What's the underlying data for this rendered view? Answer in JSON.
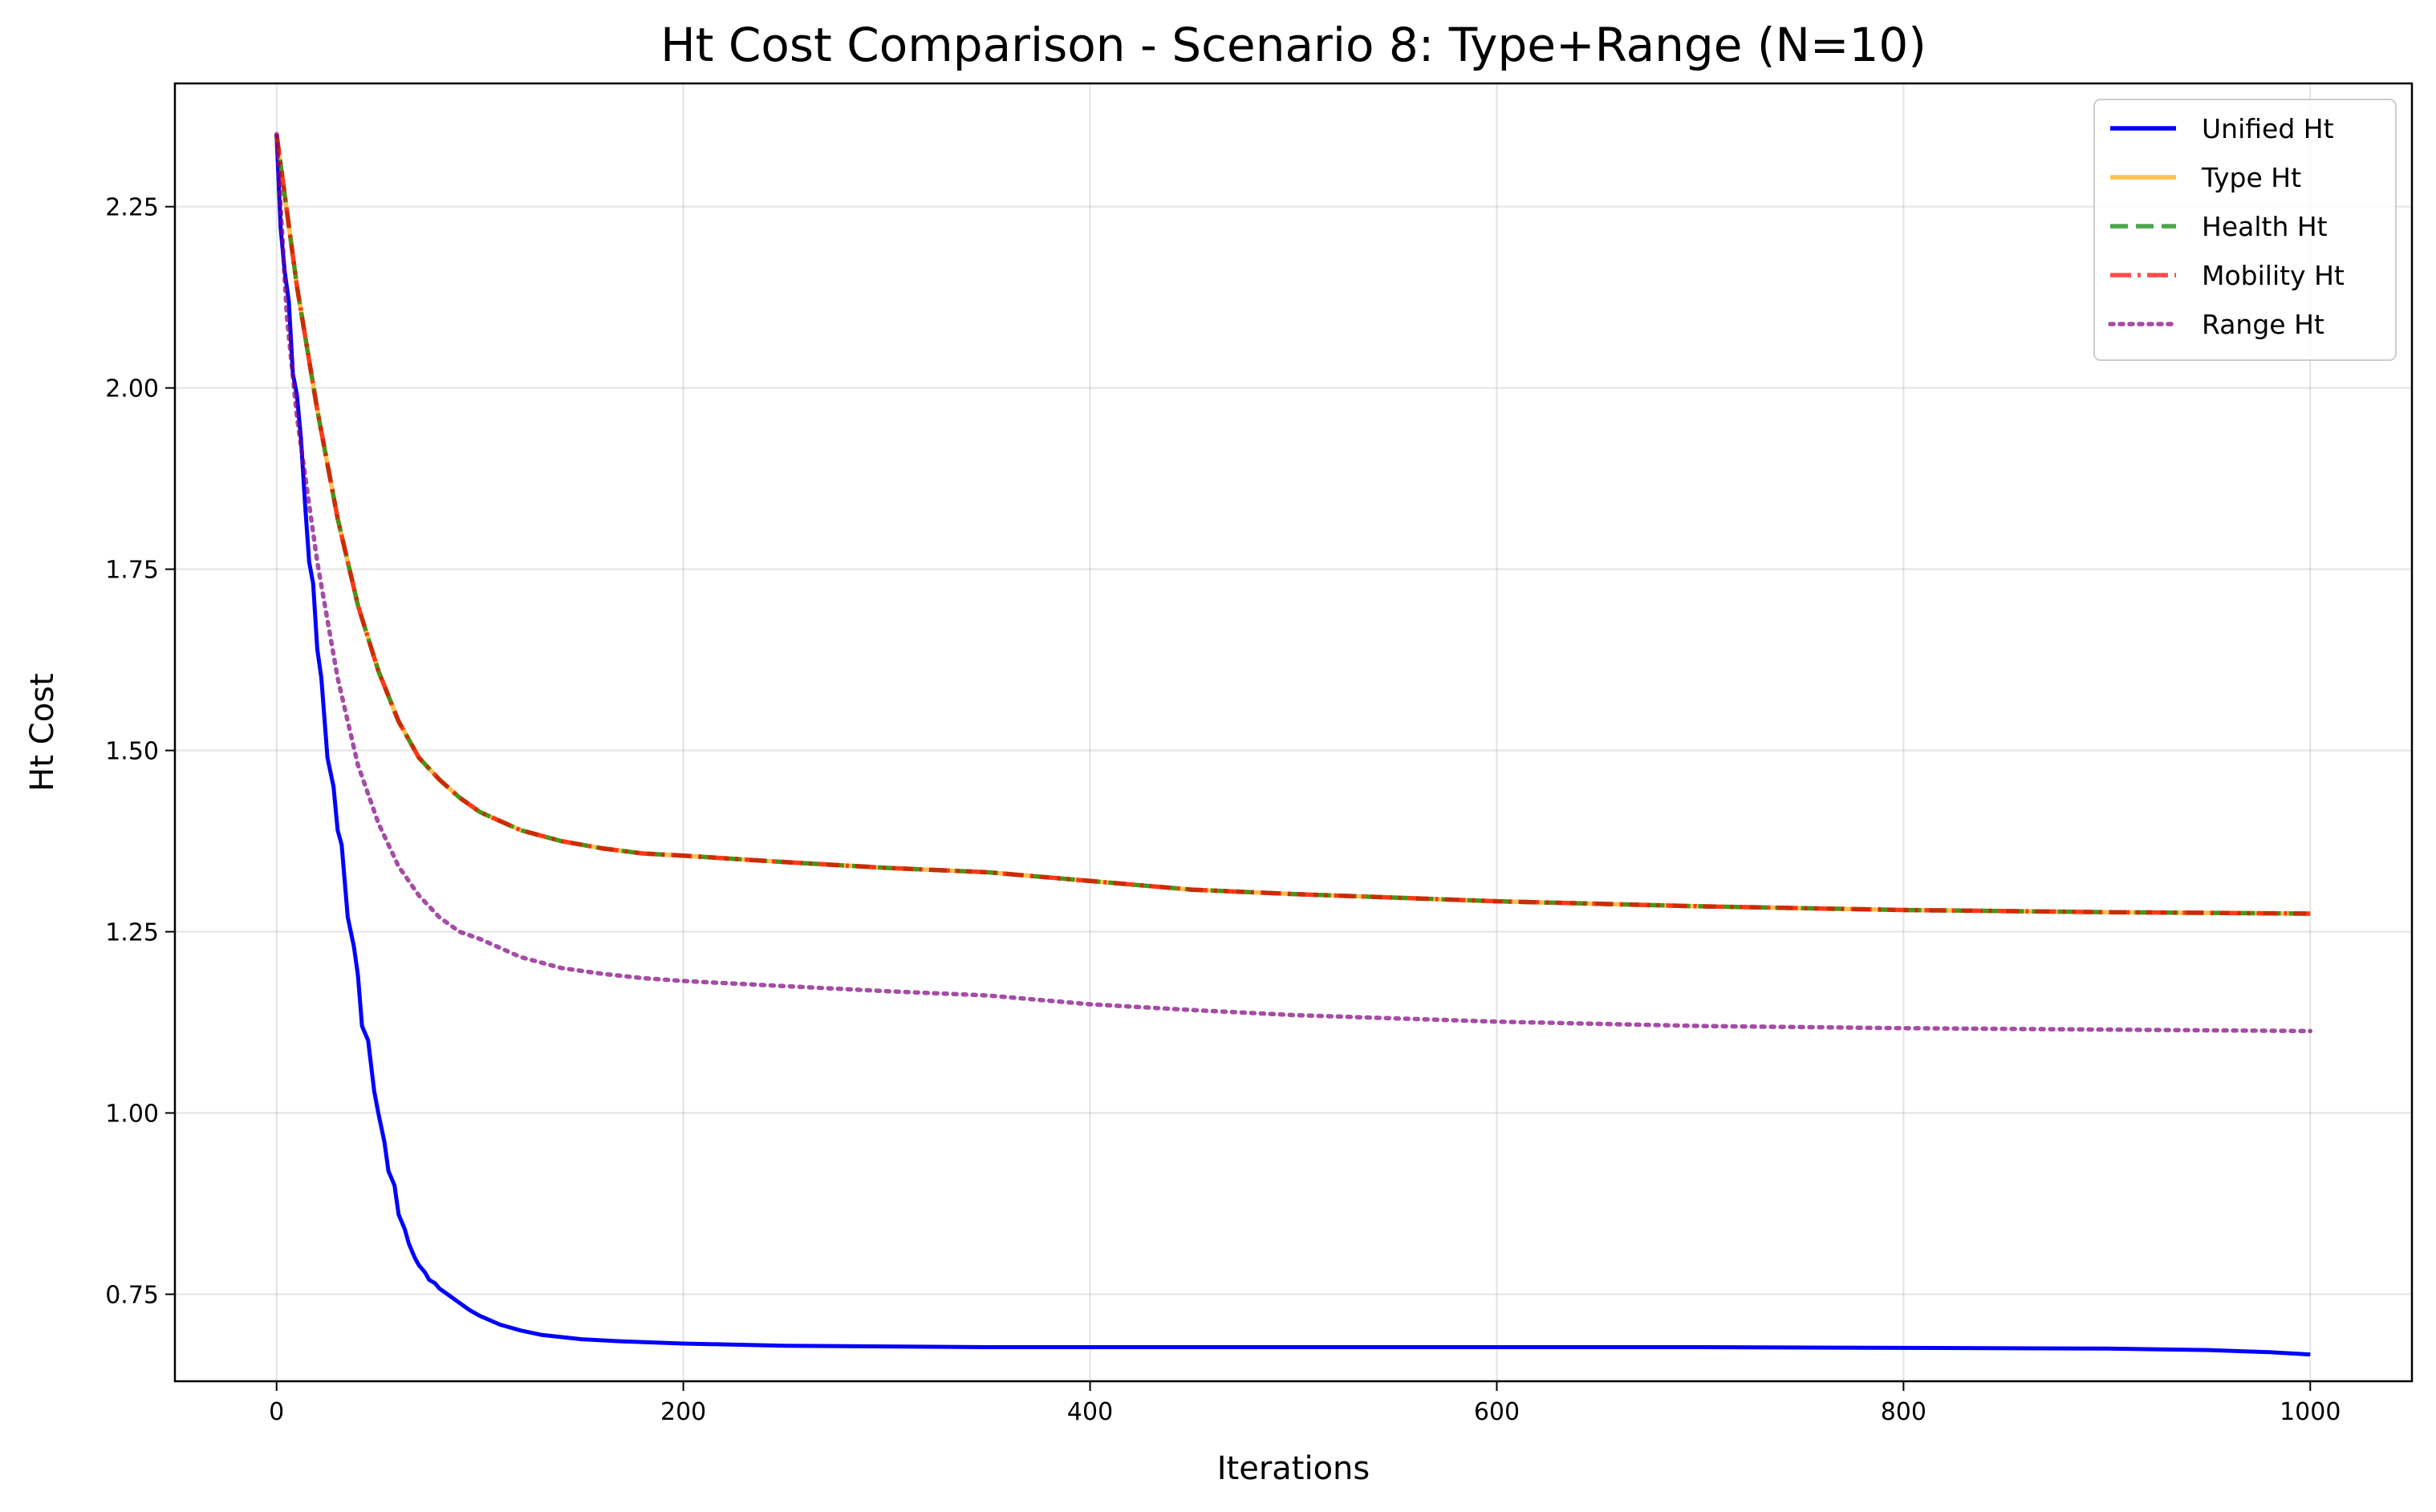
{
  "chart_data": {
    "type": "line",
    "title": "Ht Cost Comparison - Scenario 8: Type+Range (N=10)",
    "xlabel": "Iterations",
    "ylabel": "Ht Cost",
    "xlim": [
      -50,
      1050
    ],
    "ylim": [
      0.63,
      2.42
    ],
    "xticks": [
      0,
      200,
      400,
      600,
      800,
      1000
    ],
    "xtick_labels": [
      "0",
      "200",
      "400",
      "600",
      "800",
      "1000"
    ],
    "yticks": [
      0.75,
      1.0,
      1.25,
      1.5,
      1.75,
      2.0,
      2.25
    ],
    "ytick_labels": [
      "0.75",
      "1.00",
      "1.25",
      "1.50",
      "1.75",
      "2.00",
      "2.25"
    ],
    "grid": true,
    "legend_position": "top-right",
    "series": [
      {
        "name": "Unified Ht",
        "color": "#0000ff",
        "dash": "solid",
        "opacity": 1.0,
        "x": [
          0,
          2,
          4,
          6,
          8,
          10,
          12,
          14,
          16,
          18,
          20,
          22,
          25,
          28,
          30,
          32,
          35,
          38,
          40,
          42,
          45,
          48,
          50,
          53,
          55,
          58,
          60,
          63,
          65,
          68,
          70,
          73,
          75,
          78,
          80,
          83,
          85,
          90,
          95,
          100,
          110,
          120,
          130,
          150,
          170,
          200,
          250,
          300,
          350,
          400,
          500,
          600,
          700,
          800,
          900,
          950,
          980,
          1000
        ],
        "y": [
          2.35,
          2.22,
          2.16,
          2.12,
          2.02,
          1.99,
          1.93,
          1.84,
          1.76,
          1.73,
          1.64,
          1.6,
          1.49,
          1.45,
          1.39,
          1.37,
          1.27,
          1.23,
          1.19,
          1.12,
          1.1,
          1.03,
          1.0,
          0.96,
          0.92,
          0.9,
          0.86,
          0.84,
          0.82,
          0.8,
          0.79,
          0.78,
          0.77,
          0.765,
          0.758,
          0.752,
          0.748,
          0.738,
          0.728,
          0.72,
          0.708,
          0.7,
          0.694,
          0.688,
          0.685,
          0.682,
          0.679,
          0.678,
          0.677,
          0.677,
          0.677,
          0.677,
          0.677,
          0.676,
          0.675,
          0.673,
          0.67,
          0.667
        ]
      },
      {
        "name": "Type Ht",
        "color": "#ffa500",
        "dash": "solid",
        "opacity": 0.7,
        "x": [
          0,
          10,
          20,
          30,
          40,
          50,
          60,
          70,
          80,
          90,
          100,
          120,
          140,
          160,
          180,
          200,
          250,
          300,
          350,
          400,
          450,
          500,
          600,
          700,
          800,
          900,
          1000
        ],
        "y": [
          2.35,
          2.14,
          1.97,
          1.82,
          1.7,
          1.61,
          1.54,
          1.49,
          1.46,
          1.435,
          1.415,
          1.39,
          1.375,
          1.365,
          1.358,
          1.355,
          1.346,
          1.338,
          1.332,
          1.32,
          1.308,
          1.302,
          1.292,
          1.285,
          1.28,
          1.277,
          1.275
        ]
      },
      {
        "name": "Health Ht",
        "color": "#008000",
        "dash": "dashed",
        "opacity": 0.7,
        "x": [
          0,
          10,
          20,
          30,
          40,
          50,
          60,
          70,
          80,
          90,
          100,
          120,
          140,
          160,
          180,
          200,
          250,
          300,
          350,
          400,
          450,
          500,
          600,
          700,
          800,
          900,
          1000
        ],
        "y": [
          2.35,
          2.14,
          1.97,
          1.82,
          1.7,
          1.61,
          1.54,
          1.49,
          1.46,
          1.435,
          1.415,
          1.39,
          1.375,
          1.365,
          1.358,
          1.355,
          1.346,
          1.338,
          1.332,
          1.32,
          1.308,
          1.302,
          1.292,
          1.285,
          1.28,
          1.277,
          1.275
        ]
      },
      {
        "name": "Mobility Ht",
        "color": "#ff0000",
        "dash": "dashdot",
        "opacity": 0.7,
        "x": [
          0,
          10,
          20,
          30,
          40,
          50,
          60,
          70,
          80,
          90,
          100,
          120,
          140,
          160,
          180,
          200,
          250,
          300,
          350,
          400,
          450,
          500,
          600,
          700,
          800,
          900,
          1000
        ],
        "y": [
          2.35,
          2.14,
          1.97,
          1.82,
          1.7,
          1.61,
          1.54,
          1.49,
          1.46,
          1.435,
          1.415,
          1.39,
          1.375,
          1.365,
          1.358,
          1.355,
          1.346,
          1.338,
          1.332,
          1.32,
          1.308,
          1.302,
          1.292,
          1.285,
          1.28,
          1.277,
          1.275
        ]
      },
      {
        "name": "Range Ht",
        "color": "#800080",
        "dash": "dotted",
        "opacity": 0.7,
        "x": [
          0,
          5,
          10,
          15,
          20,
          25,
          30,
          40,
          50,
          60,
          70,
          80,
          90,
          100,
          120,
          140,
          160,
          180,
          200,
          250,
          300,
          350,
          400,
          450,
          500,
          600,
          700,
          800,
          900,
          1000
        ],
        "y": [
          2.35,
          2.1,
          1.96,
          1.86,
          1.76,
          1.68,
          1.6,
          1.48,
          1.4,
          1.34,
          1.3,
          1.27,
          1.25,
          1.24,
          1.215,
          1.2,
          1.192,
          1.186,
          1.182,
          1.175,
          1.168,
          1.162,
          1.15,
          1.142,
          1.135,
          1.126,
          1.12,
          1.117,
          1.115,
          1.113
        ]
      }
    ]
  }
}
